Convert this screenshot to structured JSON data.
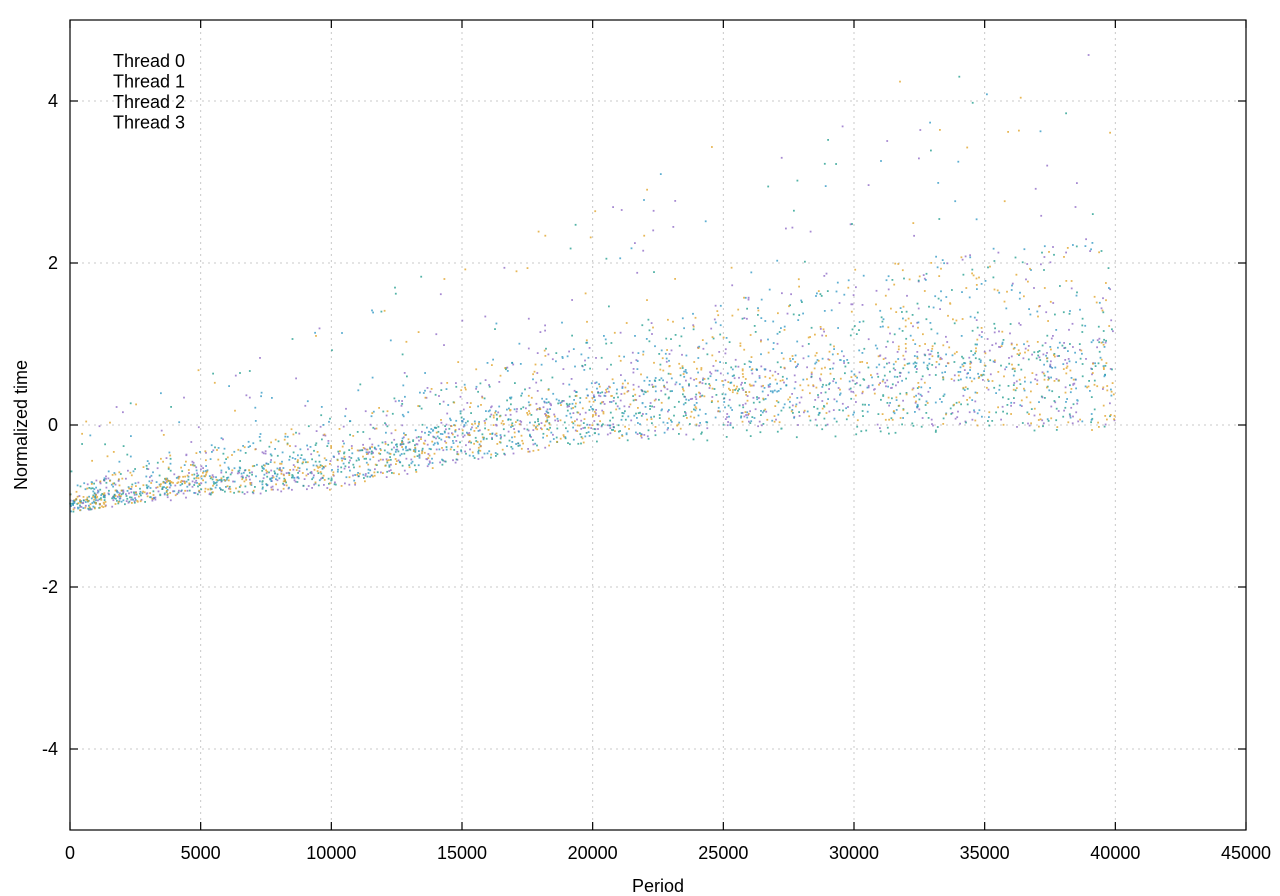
{
  "chart_data": {
    "type": "scatter",
    "title": "",
    "xlabel": "Period",
    "ylabel": "Normalized time",
    "xlim": [
      0,
      45000
    ],
    "ylim": [
      -5,
      5
    ],
    "x_ticks": [
      0,
      5000,
      10000,
      15000,
      20000,
      25000,
      30000,
      35000,
      40000,
      45000
    ],
    "y_ticks": [
      -4,
      -2,
      0,
      2,
      4
    ],
    "x_tick_labels": [
      "0",
      "5000",
      "10000",
      "15000",
      "20000",
      "25000",
      "30000",
      "35000",
      "40000",
      "45000"
    ],
    "y_tick_labels": [
      "-4",
      "-2",
      "0",
      "2",
      "4"
    ],
    "grid": true,
    "legend_position": "top-left",
    "x_max_data": 40000,
    "series": [
      {
        "name": "Thread 0",
        "color": "#8a63c4",
        "trend": [
          [
            0,
            -1.0
          ],
          [
            5000,
            -0.75
          ],
          [
            10000,
            -0.6
          ],
          [
            15000,
            -0.2
          ],
          [
            20000,
            0.1
          ],
          [
            25000,
            0.3
          ],
          [
            30000,
            0.4
          ],
          [
            35000,
            0.5
          ],
          [
            40000,
            0.5
          ]
        ]
      },
      {
        "name": "Thread 1",
        "color": "#1a9a8a",
        "trend": [
          [
            0,
            -1.0
          ],
          [
            5000,
            -0.75
          ],
          [
            10000,
            -0.55
          ],
          [
            15000,
            -0.2
          ],
          [
            20000,
            0.1
          ],
          [
            25000,
            0.2
          ],
          [
            30000,
            0.3
          ],
          [
            35000,
            0.4
          ],
          [
            40000,
            0.5
          ]
        ]
      },
      {
        "name": "Thread 2",
        "color": "#2a95c2",
        "trend": [
          [
            0,
            -1.0
          ],
          [
            5000,
            -0.7
          ],
          [
            10000,
            -0.55
          ],
          [
            15000,
            -0.15
          ],
          [
            20000,
            0.15
          ],
          [
            25000,
            0.35
          ],
          [
            30000,
            0.5
          ],
          [
            35000,
            0.6
          ],
          [
            40000,
            0.6
          ]
        ]
      },
      {
        "name": "Thread 3",
        "color": "#e0a020",
        "trend": [
          [
            0,
            -1.0
          ],
          [
            5000,
            -0.7
          ],
          [
            10000,
            -0.6
          ],
          [
            15000,
            -0.2
          ],
          [
            20000,
            0.1
          ],
          [
            25000,
            0.4
          ],
          [
            30000,
            0.5
          ],
          [
            35000,
            0.5
          ],
          [
            40000,
            0.5
          ]
        ]
      }
    ]
  }
}
